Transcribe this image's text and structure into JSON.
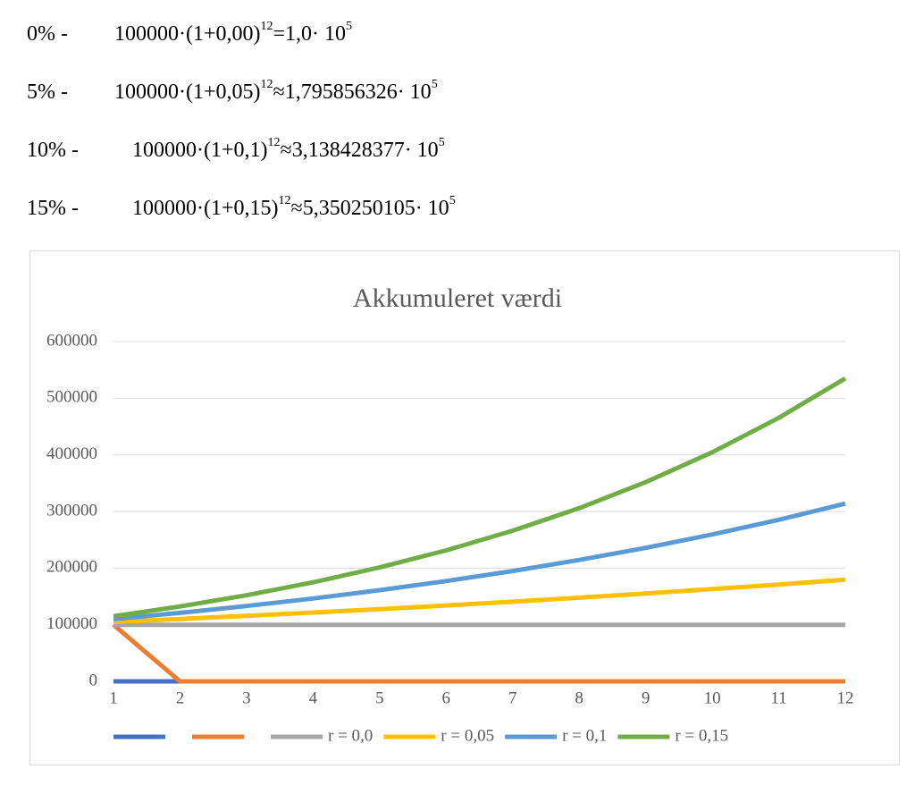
{
  "formulas": [
    {
      "label": "0% -",
      "expression": "100000·(1+0,00)",
      "exponent": "12",
      "result": "=1,0· 10",
      "result_exponent": "5"
    },
    {
      "label": "5% -",
      "expression": "100000·(1+0,05)",
      "exponent": "12",
      "result": "≈1,795856326· 10",
      "result_exponent": "5"
    },
    {
      "label": "10% -",
      "expression": "100000·(1+0,1)",
      "exponent": "12",
      "result": "≈3,138428377· 10",
      "result_exponent": "5"
    },
    {
      "label": "15% -",
      "expression": "100000·(1+0,15)",
      "exponent": "12",
      "result": "≈5,350250105· 10",
      "result_exponent": "5"
    }
  ],
  "chart_data": {
    "type": "line",
    "title": "Akkumuleret værdi",
    "x": [
      1,
      2,
      3,
      4,
      5,
      6,
      7,
      8,
      9,
      10,
      11,
      12
    ],
    "xlim": [
      1,
      12
    ],
    "xticks": [
      1,
      2,
      3,
      4,
      5,
      6,
      7,
      8,
      9,
      10,
      11,
      12
    ],
    "ylim": [
      0,
      600000
    ],
    "yticks": [
      0,
      100000,
      200000,
      300000,
      400000,
      500000,
      600000
    ],
    "grid": true,
    "legend": "bottom",
    "series": [
      {
        "color": "#4472c4",
        "values": [
          0,
          0,
          0,
          0,
          0,
          0,
          0,
          0,
          0,
          0,
          0,
          0
        ]
      },
      {
        "color": "#ed7d31",
        "values": [
          100000,
          0,
          0,
          0,
          0,
          0,
          0,
          0,
          0,
          0,
          0,
          0
        ]
      },
      {
        "name": "r = 0,0",
        "color": "#a5a5a5",
        "values": [
          100000,
          100000,
          100000,
          100000,
          100000,
          100000,
          100000,
          100000,
          100000,
          100000,
          100000,
          100000
        ]
      },
      {
        "name": "r = 0,05",
        "color": "#ffc000",
        "values": [
          105000,
          110250,
          115763,
          121551,
          127628,
          134010,
          140710,
          147746,
          155133,
          162889,
          171034,
          179586
        ]
      },
      {
        "name": "r = 0,1",
        "color": "#5b9bd5",
        "values": [
          110000,
          121000,
          133100,
          146410,
          161051,
          177156,
          194872,
          214359,
          235795,
          259374,
          285312,
          313843
        ]
      },
      {
        "name": "r = 0,15",
        "color": "#70ad47",
        "values": [
          115000,
          132250,
          152088,
          174901,
          201136,
          231306,
          266002,
          305902,
          351788,
          404556,
          465239,
          535025
        ]
      }
    ]
  }
}
